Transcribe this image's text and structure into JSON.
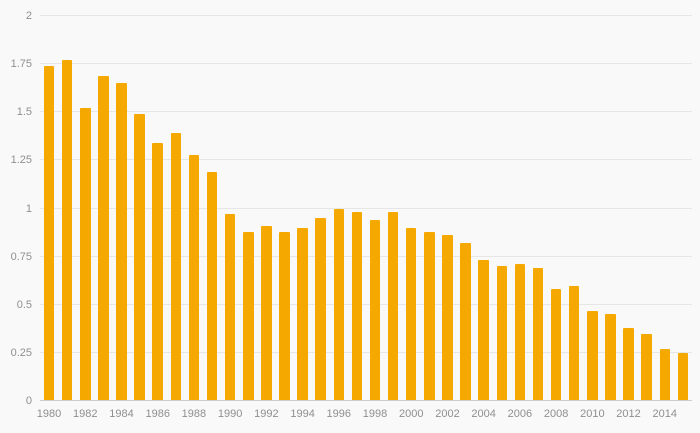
{
  "chart_data": {
    "type": "bar",
    "title": "",
    "xlabel": "",
    "ylabel": "",
    "categories": [
      "1980",
      "1981",
      "1982",
      "1983",
      "1984",
      "1985",
      "1986",
      "1987",
      "1988",
      "1989",
      "1990",
      "1991",
      "1992",
      "1993",
      "1994",
      "1995",
      "1996",
      "1997",
      "1998",
      "1999",
      "2000",
      "2001",
      "2002",
      "2003",
      "2004",
      "2005",
      "2006",
      "2007",
      "2008",
      "2009",
      "2010",
      "2011",
      "2012",
      "2013",
      "2014",
      "2015"
    ],
    "values": [
      1.74,
      1.77,
      1.52,
      1.69,
      1.65,
      1.49,
      1.34,
      1.39,
      1.28,
      1.19,
      0.97,
      0.88,
      0.91,
      0.88,
      0.9,
      0.95,
      1.0,
      0.98,
      0.94,
      0.98,
      0.9,
      0.88,
      0.86,
      0.82,
      0.73,
      0.7,
      0.71,
      0.69,
      0.58,
      0.6,
      0.47,
      0.45,
      0.38,
      0.35,
      0.27,
      0.25
    ],
    "ylim": [
      0,
      2
    ],
    "yticks": [
      0,
      0.25,
      0.5,
      0.75,
      1,
      1.25,
      1.5,
      1.75,
      2
    ],
    "xtick_labels": [
      "1980",
      "1982",
      "1984",
      "1986",
      "1988",
      "1990",
      "1992",
      "1994",
      "1996",
      "1998",
      "2000",
      "2002",
      "2004",
      "2006",
      "2008",
      "2010",
      "2012",
      "2014"
    ],
    "x_label_interval": 2,
    "grid": true,
    "legend": false,
    "colors": {
      "bar": "#f5a800",
      "background": "#f9f9f9",
      "gridline": "#e6e6e6",
      "axis_line": "#cccccc",
      "tick_text": "#8f8f8f"
    }
  }
}
